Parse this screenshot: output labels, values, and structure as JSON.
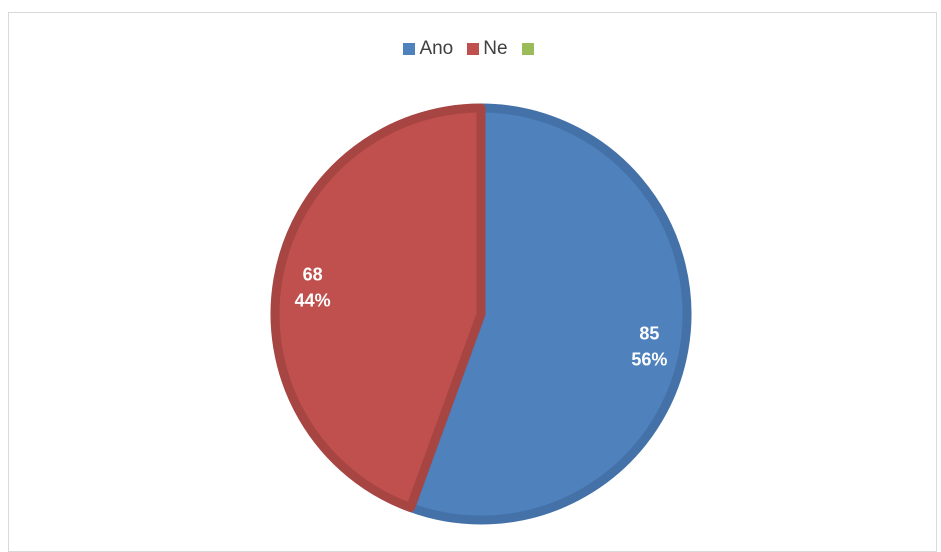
{
  "chart_data": {
    "type": "pie",
    "legend": [
      {
        "name": "Ano",
        "color": "#4F81BD"
      },
      {
        "name": "Ne",
        "color": "#C0504D"
      },
      {
        "name": "",
        "color": "#9BBB59"
      }
    ],
    "slices": [
      {
        "name": "Ano",
        "value": 85,
        "percent": "56%",
        "color": "#4F81BD",
        "edge": "#4472A8"
      },
      {
        "name": "Ne",
        "value": 68,
        "percent": "44%",
        "color": "#C0504D",
        "edge": "#A74542"
      }
    ],
    "legend_position": "top"
  }
}
